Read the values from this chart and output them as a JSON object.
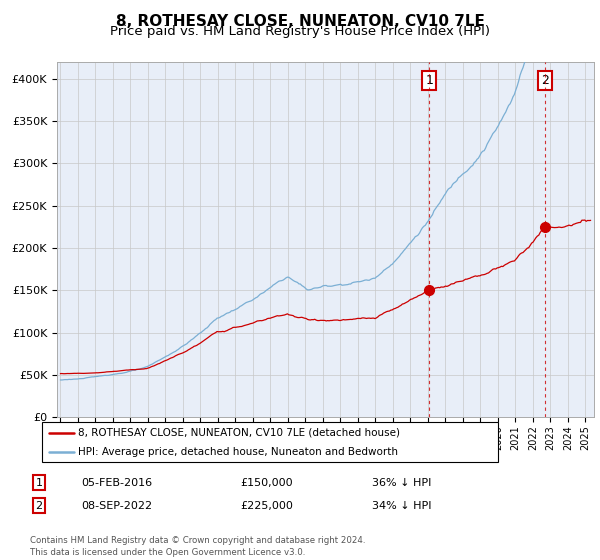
{
  "title": "8, ROTHESAY CLOSE, NUNEATON, CV10 7LE",
  "subtitle": "Price paid vs. HM Land Registry's House Price Index (HPI)",
  "ylabel_ticks": [
    "£0",
    "£50K",
    "£100K",
    "£150K",
    "£200K",
    "£250K",
    "£300K",
    "£350K",
    "£400K"
  ],
  "ylim": [
    0,
    420000
  ],
  "xlim_start": 1994.8,
  "xlim_end": 2025.5,
  "hpi_color": "#7BAFD4",
  "price_color": "#CC0000",
  "bg_color": "#E8EEF8",
  "grid_color": "#C8C8C8",
  "white_bg": "#FFFFFF",
  "marker1_date": 2016.09,
  "marker1_price": 150000,
  "marker2_date": 2022.69,
  "marker2_price": 225000,
  "legend_line1": "8, ROTHESAY CLOSE, NUNEATON, CV10 7LE (detached house)",
  "legend_line2": "HPI: Average price, detached house, Nuneaton and Bedworth",
  "marker1_text": "05-FEB-2016",
  "marker1_amount": "£150,000",
  "marker1_hpi": "36% ↓ HPI",
  "marker2_text": "08-SEP-2022",
  "marker2_amount": "£225,000",
  "marker2_hpi": "34% ↓ HPI",
  "footnote": "Contains HM Land Registry data © Crown copyright and database right 2024.\nThis data is licensed under the Open Government Licence v3.0.",
  "title_fontsize": 11,
  "subtitle_fontsize": 9.5
}
